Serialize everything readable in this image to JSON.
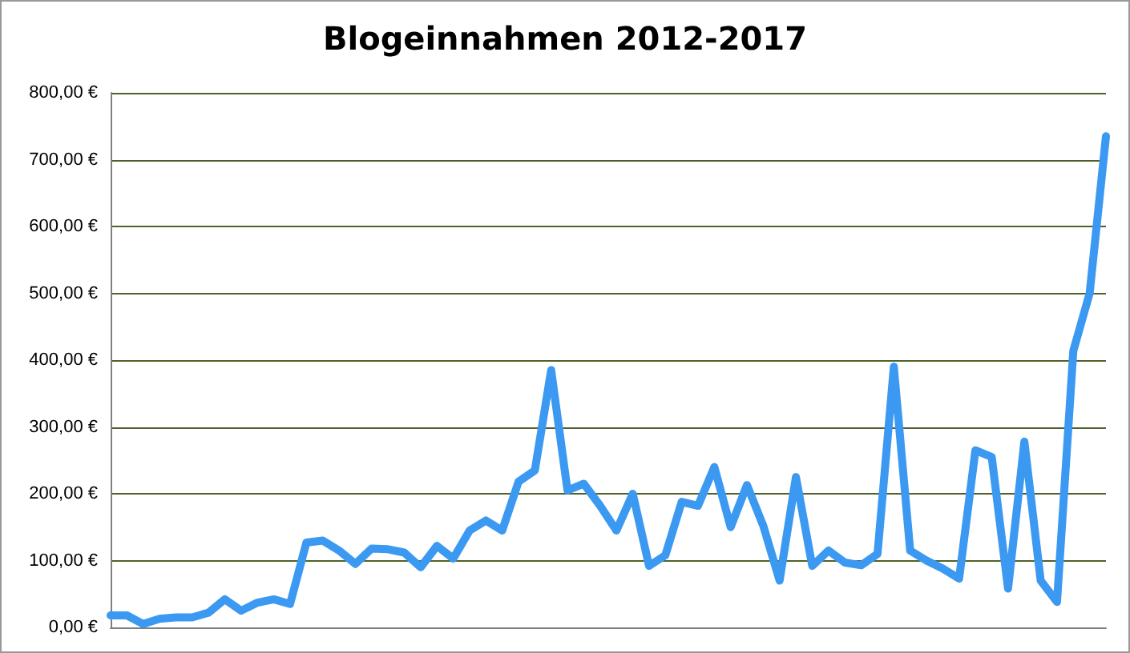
{
  "chart_data": {
    "type": "line",
    "title": "Blogeinnahmen 2012-2017",
    "categories": [
      null,
      null,
      null,
      null,
      null,
      null,
      null,
      null,
      null,
      null,
      null,
      null,
      null,
      null,
      null,
      null,
      null,
      null,
      null,
      null,
      null,
      null,
      null,
      null,
      null,
      null,
      null,
      null,
      null,
      null,
      null,
      null,
      null,
      null,
      null,
      null,
      null,
      null,
      null,
      null,
      null,
      null,
      null,
      null,
      null,
      null,
      null,
      null,
      null,
      null,
      null,
      null,
      null,
      null,
      null,
      null,
      null,
      null,
      null,
      null,
      null,
      null
    ],
    "series": [
      {
        "color": "#3b99f2",
        "values": [
          18,
          18,
          5,
          13,
          15,
          15,
          22,
          42,
          25,
          37,
          42,
          35,
          127,
          130,
          115,
          95,
          118,
          117,
          112,
          90,
          122,
          103,
          145,
          160,
          145,
          218,
          235,
          385,
          205,
          215,
          182,
          145,
          200,
          92,
          108,
          188,
          182,
          240,
          150,
          213,
          152,
          70,
          225,
          92,
          115,
          97,
          93,
          110,
          390,
          115,
          100,
          88,
          73,
          265,
          255,
          58,
          278,
          70,
          38,
          414,
          500,
          735
        ]
      }
    ],
    "ylim": [
      0,
      800
    ],
    "yticks": [
      {
        "value": 0,
        "label": "0,00 €"
      },
      {
        "value": 100,
        "label": "100,00 €"
      },
      {
        "value": 200,
        "label": "200,00 €"
      },
      {
        "value": 300,
        "label": "300,00 €"
      },
      {
        "value": 400,
        "label": "400,00 €"
      },
      {
        "value": 500,
        "label": "500,00 €"
      },
      {
        "value": 600,
        "label": "600,00 €"
      },
      {
        "value": 700,
        "label": "700,00 €"
      },
      {
        "value": 800,
        "label": "800,00 €"
      }
    ],
    "grid": "y",
    "marker": "none",
    "line_style": "solid",
    "tick_labels": "y"
  }
}
